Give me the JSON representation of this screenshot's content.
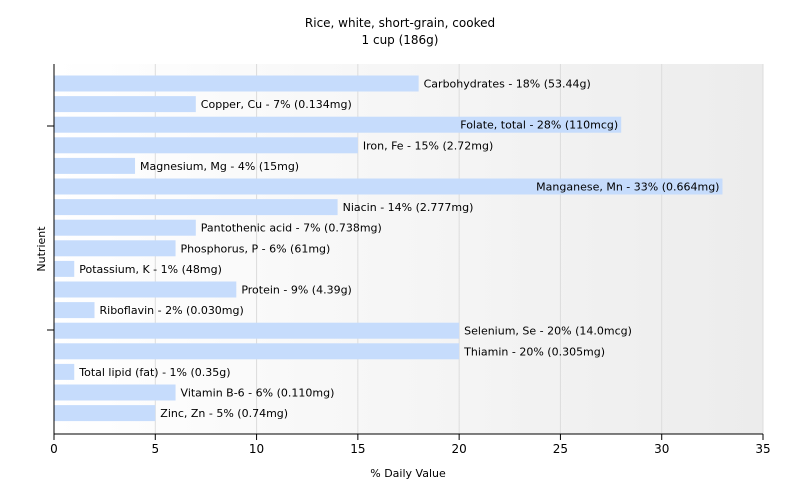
{
  "chart_data": {
    "type": "bar",
    "orientation": "horizontal",
    "title": "Rice, white, short-grain, cooked",
    "subtitle": "1 cup (186g)",
    "xlabel": "% Daily Value",
    "ylabel": "Nutrient",
    "xlim": [
      0,
      35
    ],
    "xticks": [
      0,
      5,
      10,
      15,
      20,
      25,
      30,
      35
    ],
    "grid": true,
    "bar_color": "#c6dcfc",
    "categories": [
      "Carbohydrates",
      "Copper, Cu",
      "Folate, total",
      "Iron, Fe",
      "Magnesium, Mg",
      "Manganese, Mn",
      "Niacin",
      "Pantothenic acid",
      "Phosphorus, P",
      "Potassium, K",
      "Protein",
      "Riboflavin",
      "Selenium, Se",
      "Thiamin",
      "Total lipid (fat)",
      "Vitamin B-6",
      "Zinc, Zn"
    ],
    "values": [
      18,
      7,
      28,
      15,
      4,
      33,
      14,
      7,
      6,
      1,
      9,
      2,
      20,
      20,
      1,
      6,
      5
    ],
    "bar_labels": [
      "Carbohydrates - 18% (53.44g)",
      "Copper, Cu - 7% (0.134mg)",
      "Folate, total - 28% (110mcg)",
      "Iron, Fe - 15% (2.72mg)",
      "Magnesium, Mg - 4% (15mg)",
      "Manganese, Mn - 33% (0.664mg)",
      "Niacin - 14% (2.777mg)",
      "Pantothenic acid - 7% (0.738mg)",
      "Phosphorus, P - 6% (61mg)",
      "Potassium, K - 1% (48mg)",
      "Protein - 9% (4.39g)",
      "Riboflavin - 2% (0.030mg)",
      "Selenium, Se - 20% (14.0mcg)",
      "Thiamin - 20% (0.305mg)",
      "Total lipid (fat) - 1% (0.35g)",
      "Vitamin B-6 - 6% (0.110mg)",
      "Zinc, Zn - 5% (0.74mg)"
    ]
  }
}
